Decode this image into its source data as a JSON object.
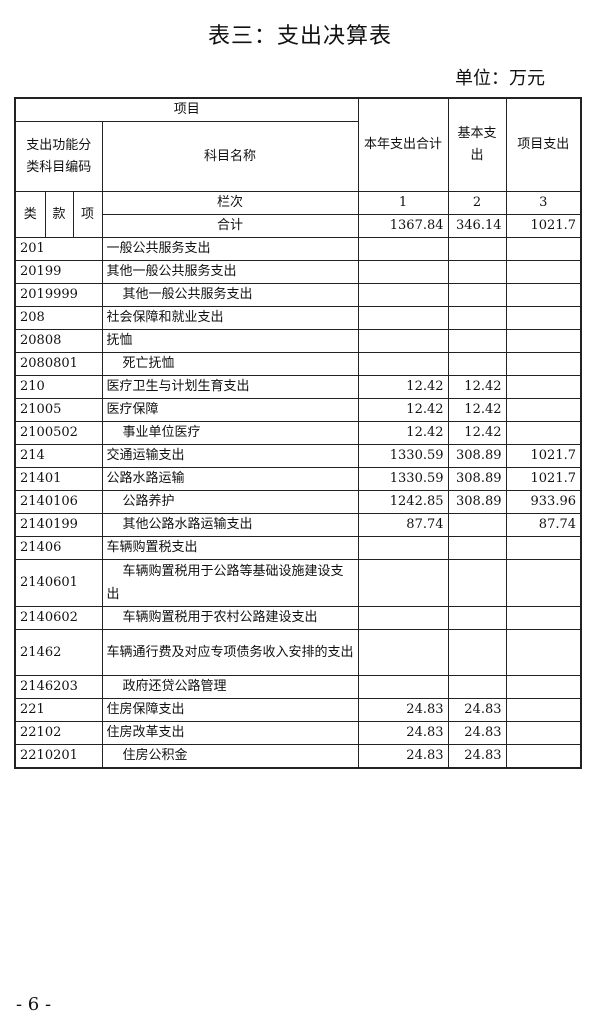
{
  "title": "表三：支出决算表",
  "unit": "单位：万元",
  "page_number": "- 6 -",
  "header": {
    "item": "项目",
    "code_group": "支出功能分类科目编码",
    "name": "科目名称",
    "total": "本年支出合计",
    "basic": "基本支出",
    "project": "项目支出",
    "lei": "类",
    "kuan": "款",
    "xiang": "项",
    "column_order": "栏次",
    "col1": "1",
    "col2": "2",
    "col3": "3",
    "sum_label": "合计",
    "sum_total": "1367.84",
    "sum_basic": "346.14",
    "sum_project": "1021.7"
  },
  "rows": [
    {
      "code": "201",
      "name": "一般公共服务支出",
      "total": "",
      "basic": "",
      "project": "",
      "indent": false
    },
    {
      "code": "20199",
      "name": "其他一般公共服务支出",
      "total": "",
      "basic": "",
      "project": "",
      "indent": false
    },
    {
      "code": "2019999",
      "name": "其他一般公共服务支出",
      "total": "",
      "basic": "",
      "project": "",
      "indent": true
    },
    {
      "code": "208",
      "name": "社会保障和就业支出",
      "total": "",
      "basic": "",
      "project": "",
      "indent": false
    },
    {
      "code": "20808",
      "name": "抚恤",
      "total": "",
      "basic": "",
      "project": "",
      "indent": false
    },
    {
      "code": "2080801",
      "name": "死亡抚恤",
      "total": "",
      "basic": "",
      "project": "",
      "indent": true
    },
    {
      "code": "210",
      "name": "医疗卫生与计划生育支出",
      "total": "12.42",
      "basic": "12.42",
      "project": "",
      "indent": false
    },
    {
      "code": "21005",
      "name": "医疗保障",
      "total": "12.42",
      "basic": "12.42",
      "project": "",
      "indent": false
    },
    {
      "code": "2100502",
      "name": "事业单位医疗",
      "total": "12.42",
      "basic": "12.42",
      "project": "",
      "indent": true
    },
    {
      "code": "214",
      "name": "交通运输支出",
      "total": "1330.59",
      "basic": "308.89",
      "project": "1021.7",
      "indent": false
    },
    {
      "code": "21401",
      "name": "公路水路运输",
      "total": "1330.59",
      "basic": "308.89",
      "project": "1021.7",
      "indent": false
    },
    {
      "code": "2140106",
      "name": "公路养护",
      "total": "1242.85",
      "basic": "308.89",
      "project": "933.96",
      "indent": true
    },
    {
      "code": "2140199",
      "name": "其他公路水路运输支出",
      "total": "87.74",
      "basic": "",
      "project": "87.74",
      "indent": true
    },
    {
      "code": "21406",
      "name": "车辆购置税支出",
      "total": "",
      "basic": "",
      "project": "",
      "indent": false
    },
    {
      "code": "2140601",
      "name": "车辆购置税用于公路等基础设施建设支出",
      "total": "",
      "basic": "",
      "project": "",
      "indent": true,
      "tall": true
    },
    {
      "code": "2140602",
      "name": "车辆购置税用于农村公路建设支出",
      "total": "",
      "basic": "",
      "project": "",
      "indent": true
    },
    {
      "code": "21462",
      "name": "车辆通行费及对应专项债务收入安排的支出",
      "total": "",
      "basic": "",
      "project": "",
      "indent": false,
      "tall": true
    },
    {
      "code": "2146203",
      "name": "政府还贷公路管理",
      "total": "",
      "basic": "",
      "project": "",
      "indent": true
    },
    {
      "code": "221",
      "name": "住房保障支出",
      "total": "24.83",
      "basic": "24.83",
      "project": "",
      "indent": false
    },
    {
      "code": "22102",
      "name": "住房改革支出",
      "total": "24.83",
      "basic": "24.83",
      "project": "",
      "indent": false
    },
    {
      "code": "2210201",
      "name": "住房公积金",
      "total": "24.83",
      "basic": "24.83",
      "project": "",
      "indent": true
    }
  ]
}
